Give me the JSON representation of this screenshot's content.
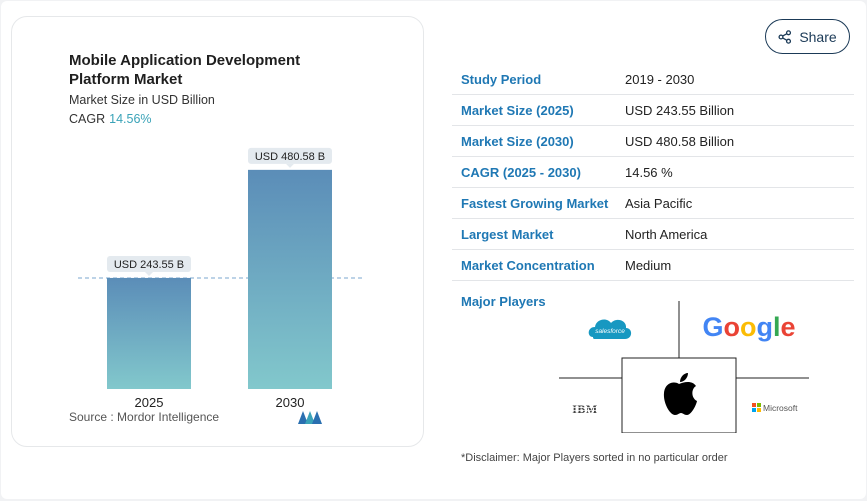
{
  "chart": {
    "title": "Mobile Application Development Platform Market",
    "subtitle": "Market Size in USD Billion",
    "cagr_label": "CAGR",
    "cagr_value": "14.56%",
    "source": "Source :  Mordor Intelligence"
  },
  "chart_data": {
    "type": "bar",
    "title": "Mobile Application Development Platform Market",
    "ylabel": "Market Size in USD Billion",
    "categories": [
      "2025",
      "2030"
    ],
    "values": [
      243.55,
      480.58
    ],
    "data_labels": [
      "USD 243.55 B",
      "USD 480.58 B"
    ],
    "ylim": [
      0,
      500
    ],
    "grid": false,
    "reference_line_value": 243.55
  },
  "share": {
    "label": "Share",
    "icon": "share-icon"
  },
  "stats": [
    {
      "label": "Study Period",
      "value": "2019 - 2030"
    },
    {
      "label": "Market Size (2025)",
      "value": "USD 243.55 Billion"
    },
    {
      "label": "Market Size (2030)",
      "value": "USD 480.58 Billion"
    },
    {
      "label": "CAGR (2025 - 2030)",
      "value": "14.56 %"
    },
    {
      "label": "Fastest Growing Market",
      "value": "Asia Pacific"
    },
    {
      "label": "Largest Market",
      "value": "North America"
    },
    {
      "label": "Market Concentration",
      "value": "Medium"
    }
  ],
  "players": {
    "label": "Major Players",
    "logos": [
      "salesforce",
      "Google",
      "IBM",
      "apple",
      "Microsoft"
    ],
    "disclaimer": "*Disclaimer: Major Players sorted in no particular order"
  },
  "colors": {
    "bar_top": "#5b8db8",
    "bar_bottom": "#82c8cc",
    "label_link": "#1f78b4",
    "cagr": "#3aa3b8"
  }
}
